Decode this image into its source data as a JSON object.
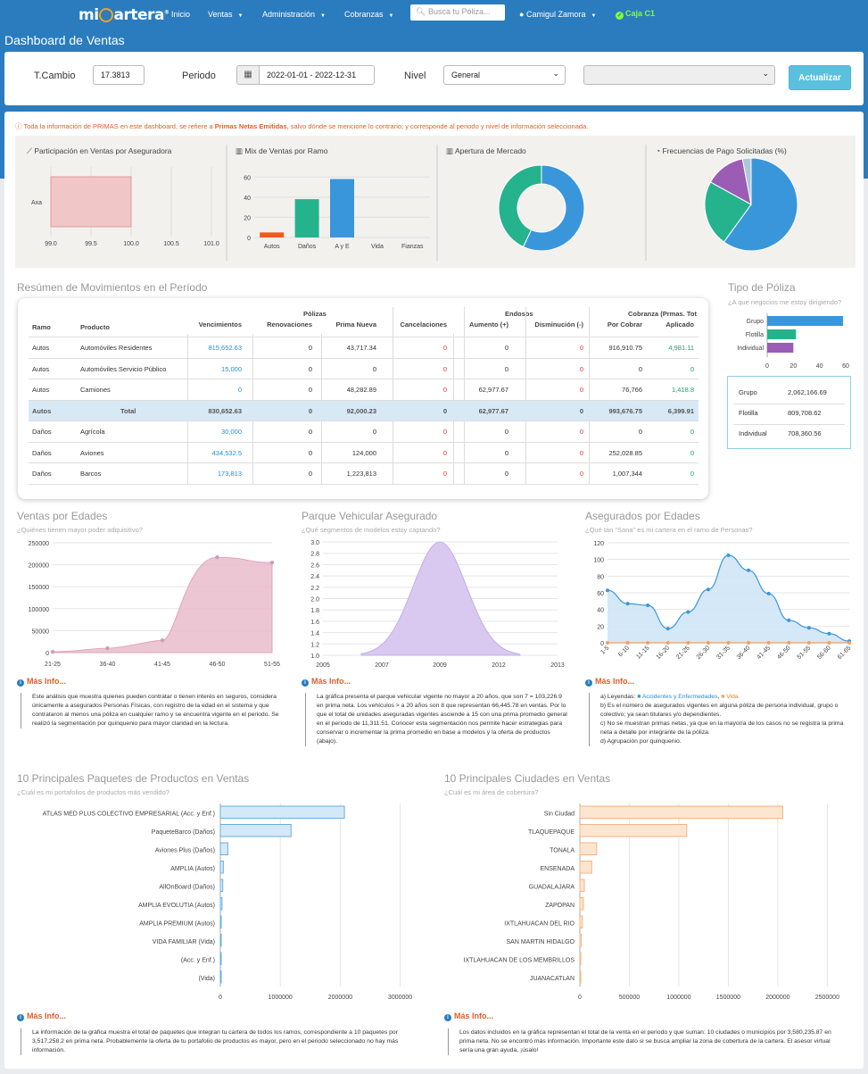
{
  "nav": {
    "brand_pre": "mi",
    "brand_post": "artera",
    "brand_mark": "®",
    "items": [
      "Inicio",
      "Ventas",
      "Administración",
      "Cobranzas"
    ],
    "search_placeholder": "Busca tu Póliza...",
    "user": "Camigul Zamora",
    "caja": "Caja C1"
  },
  "page_title": "Dashboard de Ventas",
  "filters": {
    "tcambio_label": "T.Cambio",
    "tcambio_value": "17.3813",
    "periodo_label": "Periodo",
    "periodo_value": "2022-01-01 - 2022-12-31",
    "nivel_label": "Nivel",
    "nivel_value": "General",
    "nivel2_value": "",
    "update_button": "Actualizar"
  },
  "notice": {
    "pre": "Toda la información de PRIMAS en este dashboard, se refiere a ",
    "bold": "Primas Netas Emitidas",
    "post": ", salvo dónde se mencione lo contrario; y corresponde al periodo y nivel de información seleccionada."
  },
  "mini_titles": {
    "participacion": "Participación en Ventas por Aseguradora",
    "mix": "Mix de Ventas por Ramo",
    "apertura": "Apertura de Mercado",
    "frecuencias": "Frecuencias de Pago Solicitadas (%)"
  },
  "colors": {
    "nav": "#2b7cbf",
    "blue": "#3a96db",
    "green": "#25b38d",
    "orange": "#f05a1e",
    "purple": "#9a5cb4",
    "pink": "#e9b8c8",
    "lavender": "#d9c9f0",
    "lightblue": "#cfe5f6",
    "peach": "#fde3cc"
  },
  "chart_data": [
    {
      "id": "participacion",
      "type": "bar",
      "orientation": "horizontal",
      "categories": [
        "Axa"
      ],
      "values": [
        100
      ],
      "xlim": [
        99.0,
        101.0
      ],
      "xticks": [
        "99.0",
        "99.5",
        "100.0",
        "100.5",
        "101.0"
      ]
    },
    {
      "id": "mix",
      "type": "bar",
      "categories": [
        "Autos",
        "Daños",
        "A y E",
        "Vida",
        "Fianzas"
      ],
      "values": [
        5,
        38,
        58,
        0,
        0
      ],
      "ylim": [
        0,
        70
      ],
      "yticks": [
        "0",
        "20",
        "40",
        "60"
      ]
    },
    {
      "id": "apertura",
      "type": "pie",
      "donut": true,
      "values": [
        57,
        43
      ]
    },
    {
      "id": "frecuencias",
      "type": "pie",
      "values": [
        60,
        23,
        14,
        3
      ]
    },
    {
      "id": "tipo_poliza",
      "type": "bar",
      "orientation": "horizontal",
      "categories": [
        "Grupo",
        "Flotilla",
        "Individual"
      ],
      "values": [
        58,
        22,
        20
      ],
      "xlim": [
        0,
        60
      ],
      "xticks": [
        "0",
        "20",
        "40",
        "60"
      ]
    },
    {
      "id": "edades",
      "type": "area",
      "title": "Ventas por Edades",
      "x": [
        "21-25",
        "36-40",
        "41-45",
        "46-50",
        "51-55"
      ],
      "y": [
        2000,
        10000,
        28000,
        217000,
        205000
      ],
      "ylim": [
        0,
        250000
      ],
      "yticks": [
        "0",
        "50000",
        "100000",
        "150000",
        "200000",
        "250000"
      ]
    },
    {
      "id": "vehicular",
      "type": "area",
      "title": "Parque Vehicular Asegurado",
      "x": [
        2005,
        2013
      ],
      "peak": [
        2009,
        3.0
      ],
      "ylim": [
        1.0,
        3.0
      ],
      "xticks": [
        "2005",
        "2007",
        "2009",
        "2012",
        "2013"
      ],
      "yticks": [
        "1.0",
        "1.2",
        "1.4",
        "1.6",
        "1.8",
        "2.0",
        "2.2",
        "2.4",
        "2.6",
        "2.8",
        "3.0"
      ]
    },
    {
      "id": "asegurados",
      "type": "line",
      "title": "Asegurados por Edades",
      "x": [
        "1-5",
        "6-10",
        "11-15",
        "16-20",
        "21-25",
        "26-30",
        "31-35",
        "36-40",
        "41-45",
        "46-50",
        "51-55",
        "56-60",
        "61-65"
      ],
      "series": [
        {
          "name": "Accidentes y Enfermedades",
          "values": [
            63,
            47,
            45,
            17,
            37,
            64,
            105,
            87,
            59,
            27,
            18,
            11,
            2
          ]
        },
        {
          "name": "Vida",
          "values": [
            0,
            0,
            0,
            0,
            0,
            0,
            0,
            0,
            0,
            0,
            0,
            0,
            0
          ]
        }
      ],
      "ylim": [
        0,
        120
      ],
      "yticks": [
        "0",
        "20",
        "40",
        "60",
        "80",
        "100",
        "120"
      ]
    },
    {
      "id": "paquetes",
      "type": "bar",
      "orientation": "horizontal",
      "title": "10 Principales Paquetes de Productos en Ventas",
      "categories": [
        "ATLAS MED PLUS COLECTIVO EMPRESARIAL (Acc. y Enf.)",
        "PaqueteBarco (Daños)",
        "Aviones Plus (Daños)",
        "AMPLIA (Autos)",
        "AllOnBoard (Daños)",
        "AMPLIA EVOLUTIA (Autos)",
        "AMPLIA PREMIUM (Autos)",
        "VIDA FAMILIAR (Vida)",
        "(Acc. y Enf.)",
        "(Vida)"
      ],
      "values": [
        2070000,
        1180000,
        125000,
        50000,
        40000,
        28000,
        5000,
        3000,
        2000,
        1000
      ],
      "xlim": [
        0,
        3200000
      ],
      "xticks": [
        "0",
        "1000000",
        "2000000",
        "3000000"
      ]
    },
    {
      "id": "ciudades",
      "type": "bar",
      "orientation": "horizontal",
      "title": "10 Principales Ciudades en Ventas",
      "categories": [
        "Sin Ciudad",
        "TLAQUEPAQUE",
        "TONALA",
        "ENSENADA",
        "GUADALAJARA",
        "ZAPOPAN",
        "IXTLAHUACAN DEL RIO",
        "SAN MARTIN HIDALGO",
        "IXTLAHUACAN DE LOS MEMBRILLOS",
        "JUANACATLAN"
      ],
      "values": [
        2050000,
        1080000,
        170000,
        120000,
        45000,
        35000,
        25000,
        15000,
        8000,
        5000
      ],
      "xlim": [
        0,
        2650000
      ],
      "xticks": [
        "0",
        "500000",
        "1000000",
        "1500000",
        "2000000",
        "2500000"
      ]
    }
  ],
  "resumen": {
    "title": "Resúmen de Movimientos en el Período",
    "group_headers": [
      "Pólizas",
      "Endosos",
      "Cobranza (Prmas. Tot"
    ],
    "headers": [
      "Ramo",
      "Producto",
      "Vencimientos",
      "Renovaciones",
      "Prima Nueva",
      "Cancelaciones",
      "Aumento (+)",
      "Disminución (-)",
      "Por Cobrar",
      "Aplicado"
    ],
    "rows": [
      [
        "Autos",
        "Automóviles Residentes",
        "815,652.63",
        "0",
        "43,717.34",
        "0",
        "0",
        "0",
        "916,910.75",
        "4,981.11"
      ],
      [
        "Autos",
        "Automóviles Servicio Público",
        "15,000",
        "0",
        "0",
        "0",
        "0",
        "0",
        "0",
        "0"
      ],
      [
        "Autos",
        "Camiones",
        "0",
        "0",
        "48,282.89",
        "0",
        "62,977.67",
        "0",
        "76,766",
        "1,418.8"
      ],
      [
        "Autos",
        "Total",
        "830,652.63",
        "0",
        "92,000.23",
        "0",
        "62,977.67",
        "0",
        "993,676.75",
        "6,399.91"
      ],
      [
        "Daños",
        "Agrícola",
        "30,000",
        "0",
        "0",
        "0",
        "0",
        "0",
        "0",
        "0"
      ],
      [
        "Daños",
        "Aviones",
        "434,532.5",
        "0",
        "124,000",
        "0",
        "0",
        "0",
        "252,028.85",
        "0"
      ],
      [
        "Daños",
        "Barcos",
        "173,813",
        "0",
        "1,223,813",
        "0",
        "0",
        "0",
        "1,007,344",
        "0"
      ]
    ]
  },
  "tipo_poliza": {
    "title": "Tipo de Póliza",
    "subtitle": "¿A que negocios me estoy dirigiendo?",
    "summary": [
      [
        "Grupo",
        "2,062,166.69"
      ],
      [
        "Flotilla",
        "809,708.62"
      ],
      [
        "Individual",
        "708,360.56"
      ]
    ]
  },
  "sections": {
    "edades": {
      "title": "Ventas por Edades",
      "subtitle": "¿Quiénes tienen mayor poder adquisitivo?"
    },
    "vehicular": {
      "title": "Parque Vehicular Asegurado",
      "subtitle": "¿Qué segmentos de modelos estoy captando?"
    },
    "asegurados": {
      "title": "Asegurados por Edades",
      "subtitle": "¿Qué tan \"Sana\" es mi cartera en el ramo de Personas?"
    },
    "paquetes": {
      "title": "10 Principales Paquetes de Productos en Ventas",
      "subtitle": "¿Cuál es mi portafolios de productos más vendido?"
    },
    "ciudades": {
      "title": "10 Principales Ciudades en Ventas",
      "subtitle": "¿Cuál es mi área de cobertura?"
    }
  },
  "masinfo_label": "Más Info...",
  "info": {
    "edades": "Este análisis que muestra quienes pueden contratar o tienen interés en seguros, considera únicamente a asegurados Personas Físicas, con registro de la edad en el sistema y que contrataron al menos una póliza en cualquier ramo y se encuentra vigente en el periodo. Se realizó la segmentación por quinquenio para mayor claridad en la lectura.",
    "vehicular": "La gráfica presenta el parque vehicular vigente no mayor a 20 años, que son 7 = 103,226.9 en prima neta. Los vehículos > a 20 años son 8 que representan 66,445.78 en ventas. Por lo que el total de unidades aseguradas vigentes asciende a 15 con una prima promedio general en el periodo de 11,311.51. Conocer esta segmentación nos permite hacer estrategias para conservar o incrementar la prima promedio en base a modelos y la oferta de productos (abajo).",
    "asegurados_a": "a) Leyendas: ",
    "asegurados_leg1": "Accidentes y Enfermedades",
    "asegurados_leg2": "Vida",
    "asegurados_b": "b) Es el número de asegurados vigentes en alguna póliza de persona individual, grupo o colectivo; ya sean titulares y/o dependientes.",
    "asegurados_c": "c) No se muestran primas netas, ya que en la mayoría de los casos no se registra la prima neta a detalle por integrante de la póliza.",
    "asegurados_d": "d) Agrupación por quinquenio.",
    "paquetes": "La información de la gráfica muestra el total de paquetes que integran tu cartera de todos los ramos, correspondiente a 10 paquetes por 3,517,258.2 en prima neta. Probablemente la oferta de tu portafolio de productos es mayor, pero en el periodo seleccionado no hay más información.",
    "ciudades": "Los datos incluidos en la gráfica representan el total de la venta en el periodo y que suman: 10 ciudades o municipios por 3,580,235.87 en prima neta. No se encontró más información. Importante este dato si se busca ampliar la zona de cobertura de la cartera. El asesor virtual sería una gran ayuda, ¡úsalo!"
  }
}
